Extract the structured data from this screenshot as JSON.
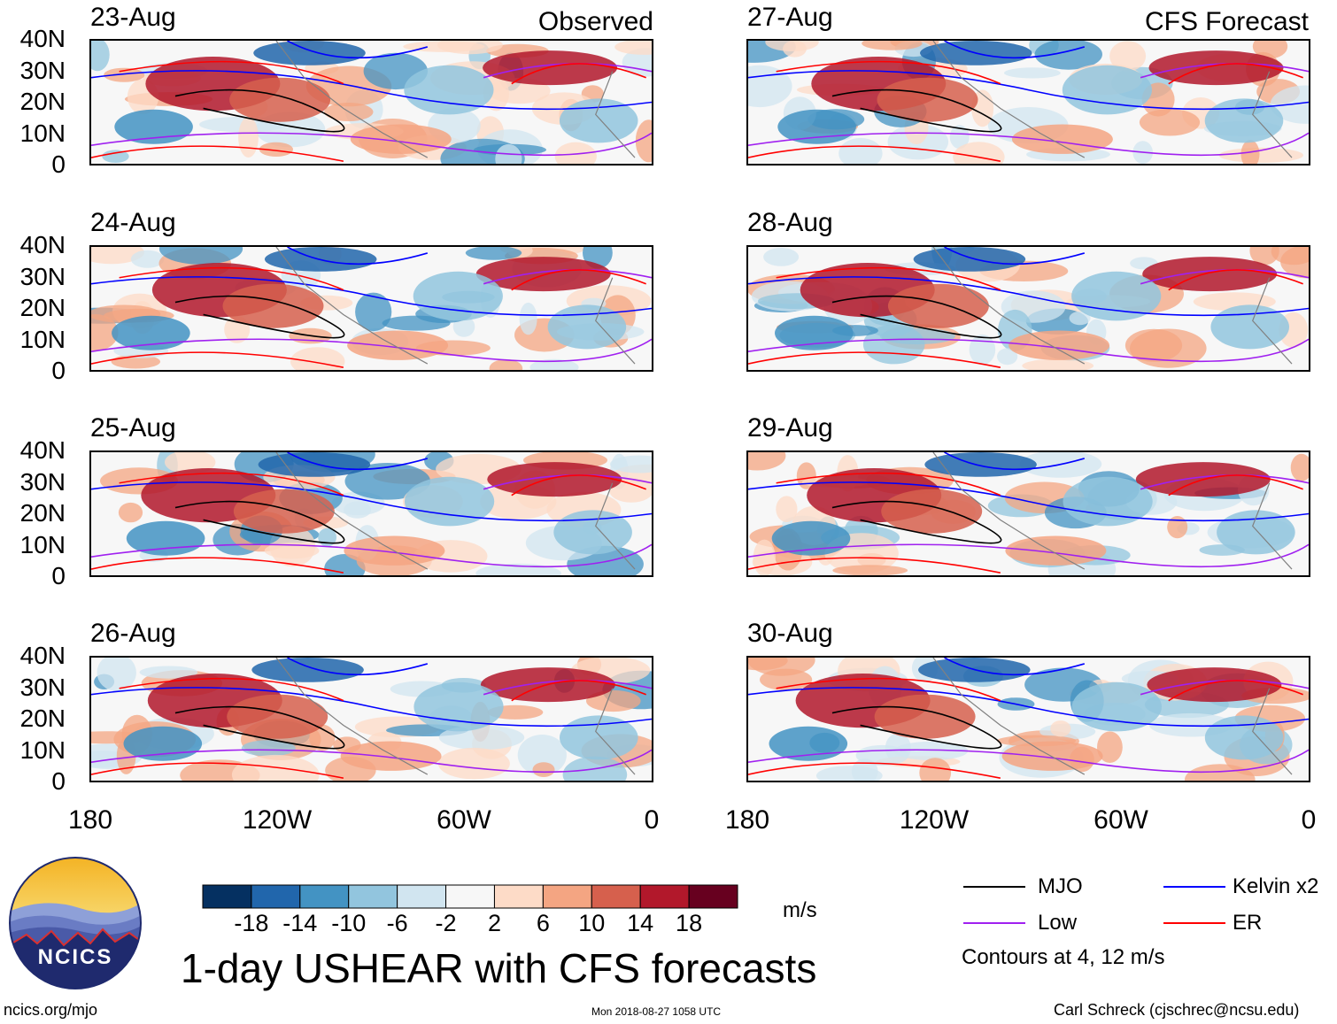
{
  "chart_data": {
    "type": "heatmap",
    "title": "1-day USHEAR with CFS forecasts",
    "units": "m/s",
    "observed_label": "Observed",
    "forecast_label": "CFS Forecast",
    "observed_dates": [
      "23-Aug",
      "24-Aug",
      "25-Aug",
      "26-Aug"
    ],
    "forecast_dates": [
      "27-Aug",
      "28-Aug",
      "29-Aug",
      "30-Aug"
    ],
    "lat_ticks": [
      "40N",
      "30N",
      "20N",
      "10N",
      "0"
    ],
    "lon_ticks": [
      "180",
      "120W",
      "60W",
      "0"
    ],
    "xlim": [
      -180,
      0
    ],
    "ylim": [
      0,
      40
    ],
    "colorbar": {
      "tick_labels": [
        "-18",
        "-14",
        "-10",
        "-6",
        "-2",
        "2",
        "6",
        "10",
        "14",
        "18"
      ],
      "colors": [
        "#053061",
        "#2166ac",
        "#4393c3",
        "#92c5de",
        "#d1e5f0",
        "#f7f7f7",
        "#fddbc7",
        "#f4a582",
        "#d6604d",
        "#b2182b",
        "#67001f"
      ]
    },
    "legend": {
      "entries": [
        {
          "label": "MJO",
          "color": "#000000"
        },
        {
          "label": "Kelvin x2",
          "color": "#0000ff"
        },
        {
          "label": "Low",
          "color": "#a020f0"
        },
        {
          "label": "ER",
          "color": "#ff0000"
        }
      ],
      "note": "Contours at 4, 12 m/s"
    }
  },
  "footer": {
    "website": "ncics.org/mjo",
    "timestamp": "Mon 2018-08-27 1058 UTC",
    "author": "Carl Schreck (cjschrec@ncsu.edu)",
    "logo_text": "NCICS"
  }
}
